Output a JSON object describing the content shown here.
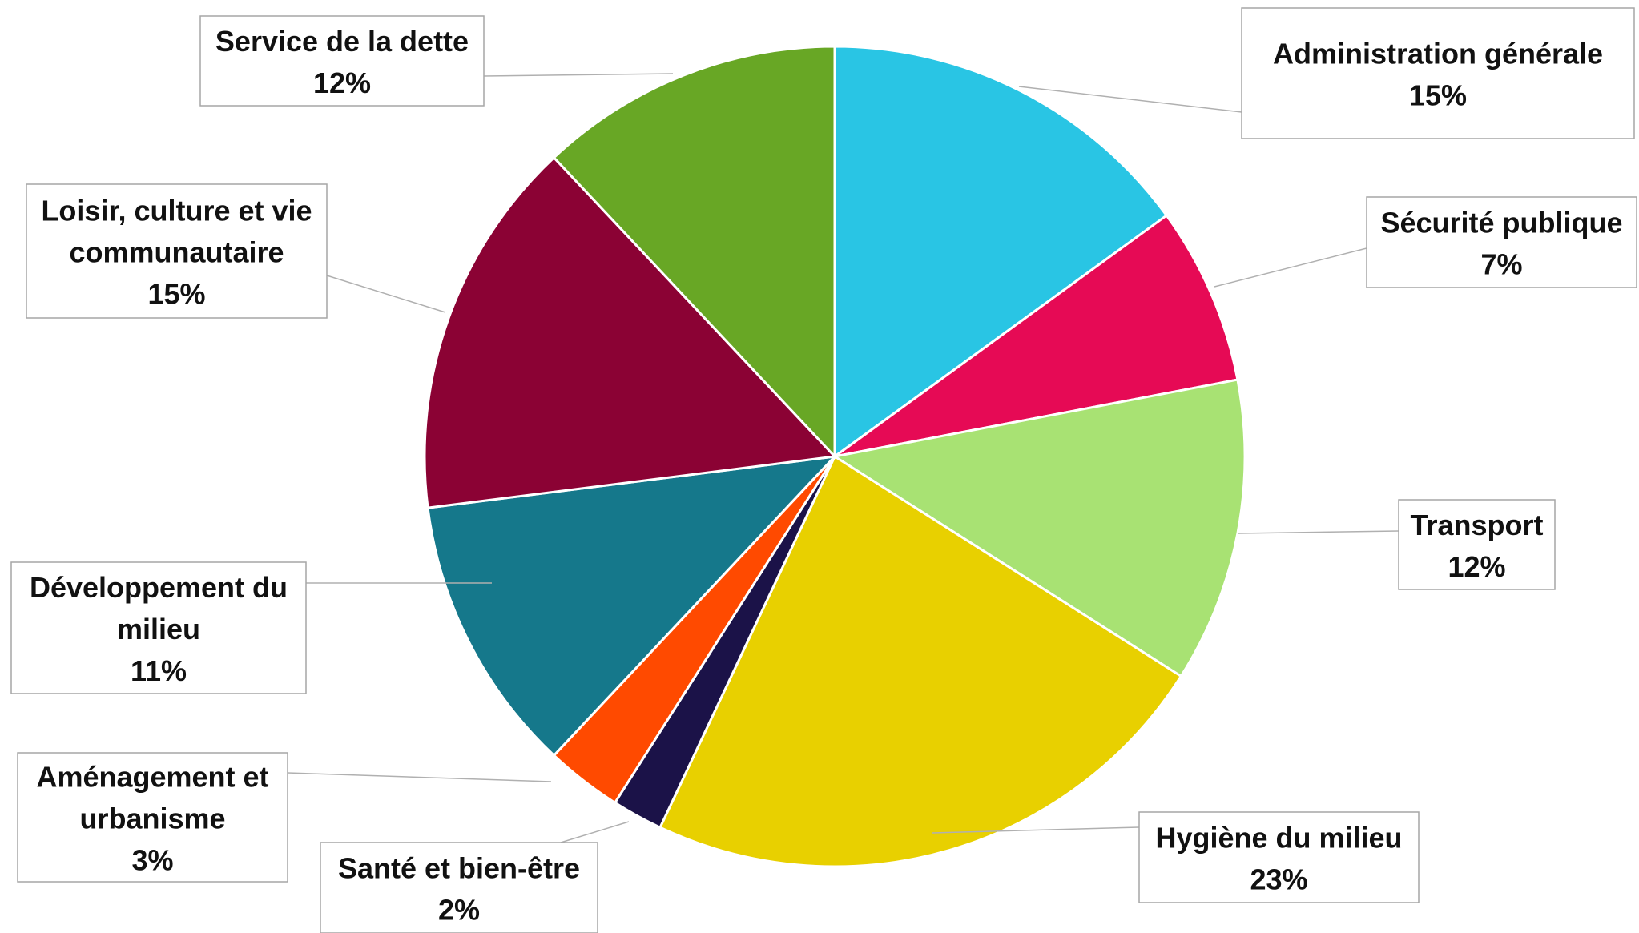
{
  "chart_data": {
    "type": "pie",
    "title": "",
    "legend": "none",
    "data_labels": "category-name-and-percent, callout boxes outside",
    "slices": [
      {
        "label": "Administration générale",
        "percent_label": "15%",
        "value": 15,
        "color": "#29C5E4"
      },
      {
        "label": "Sécurité publique",
        "percent_label": "7%",
        "value": 7,
        "color": "#E60A55"
      },
      {
        "label": "Transport",
        "percent_label": "12%",
        "value": 12,
        "color": "#A8E273"
      },
      {
        "label": "Hygiène du milieu",
        "percent_label": "23%",
        "value": 23,
        "color": "#E8D000"
      },
      {
        "label": "Santé et bien-être",
        "percent_label": "2%",
        "value": 2,
        "color": "#1B1248"
      },
      {
        "label": "Aménagement et urbanisme",
        "percent_label": "3%",
        "value": 3,
        "color": "#FF4A00"
      },
      {
        "label": "Développement du milieu",
        "percent_label": "11%",
        "value": 11,
        "color": "#15788B"
      },
      {
        "label": "Loisir, culture et vie communautaire",
        "percent_label": "15%",
        "value": 15,
        "color": "#8B0234"
      },
      {
        "label": "Service de la dette",
        "percent_label": "12%",
        "value": 12,
        "color": "#68A725"
      }
    ]
  }
}
